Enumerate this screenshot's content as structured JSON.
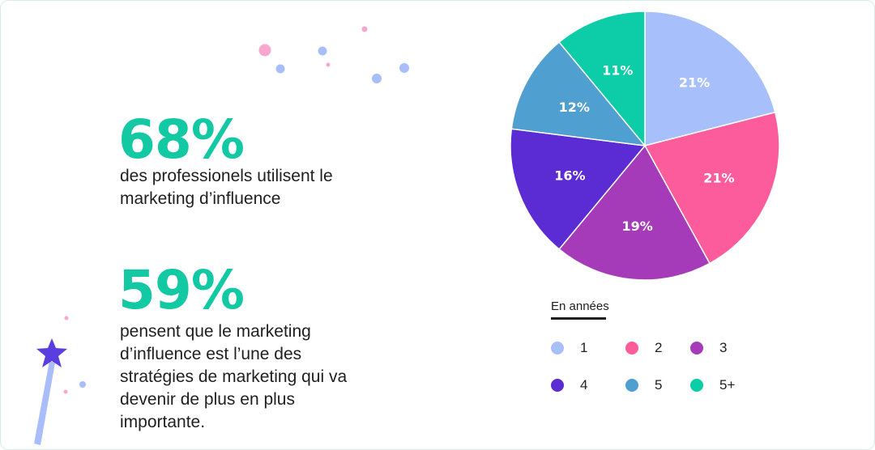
{
  "colors": {
    "accent": "#12c9a4",
    "series": [
      "#a7bffb",
      "#fc5b9c",
      "#a53bb9",
      "#5b2cd4",
      "#509fd1",
      "#0ccda7"
    ],
    "decor": [
      "#f8a7cf",
      "#a9bdfb",
      "#6a4be0"
    ]
  },
  "stats": [
    {
      "value": "68%",
      "text": "des professionels utilisent le marketing d’influence"
    },
    {
      "value": "59%",
      "text": "pensent que le marketing d’influence est l’une des stratégies de marketing qui va devenir de plus en plus importante."
    }
  ],
  "chart_data": {
    "type": "pie",
    "title": "",
    "categories": [
      "1",
      "2",
      "3",
      "4",
      "5",
      "5+"
    ],
    "values": [
      21,
      21,
      19,
      16,
      12,
      11
    ],
    "labels": [
      "21%",
      "21%",
      "19%",
      "16%",
      "12%",
      "11%"
    ],
    "legend": {
      "title": "En années",
      "placement": "bottom-right"
    }
  }
}
